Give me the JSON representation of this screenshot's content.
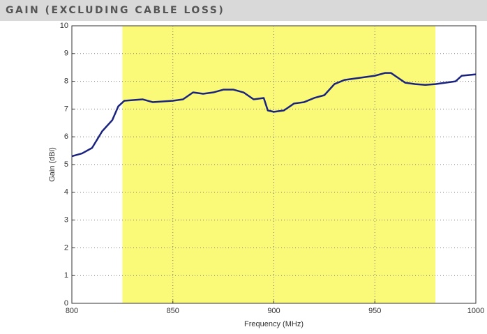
{
  "header": {
    "title": "GAIN (EXCLUDING CABLE LOSS)"
  },
  "chart_data": {
    "type": "line",
    "xlabel": "Frequency (MHz)",
    "ylabel": "Gain (dBi)",
    "x": [
      800,
      805,
      810,
      815,
      820,
      823,
      826,
      835,
      840,
      850,
      855,
      860,
      865,
      870,
      875,
      880,
      885,
      890,
      895,
      897,
      900,
      905,
      910,
      915,
      920,
      925,
      930,
      935,
      940,
      945,
      950,
      955,
      958,
      962,
      965,
      970,
      975,
      980,
      985,
      990,
      993,
      1000
    ],
    "series": [
      {
        "name": "Gain",
        "color": "#1a237e",
        "values": [
          5.3,
          5.4,
          5.6,
          6.2,
          6.6,
          7.1,
          7.3,
          7.35,
          7.25,
          7.3,
          7.35,
          7.6,
          7.55,
          7.6,
          7.7,
          7.7,
          7.6,
          7.35,
          7.4,
          6.95,
          6.9,
          6.95,
          7.2,
          7.25,
          7.4,
          7.5,
          7.9,
          8.05,
          8.1,
          8.15,
          8.2,
          8.3,
          8.3,
          8.1,
          7.95,
          7.9,
          7.87,
          7.9,
          7.95,
          8.0,
          8.2,
          8.25
        ]
      }
    ],
    "band": [
      825,
      980
    ],
    "band_color": "#fafa78",
    "xlim": [
      800,
      1000
    ],
    "xticks": [
      800,
      850,
      900,
      950,
      1000
    ],
    "ylim": [
      0,
      10
    ],
    "yticks": [
      0,
      1,
      2,
      3,
      4,
      5,
      6,
      7,
      8,
      9,
      10
    ],
    "grid": true
  }
}
